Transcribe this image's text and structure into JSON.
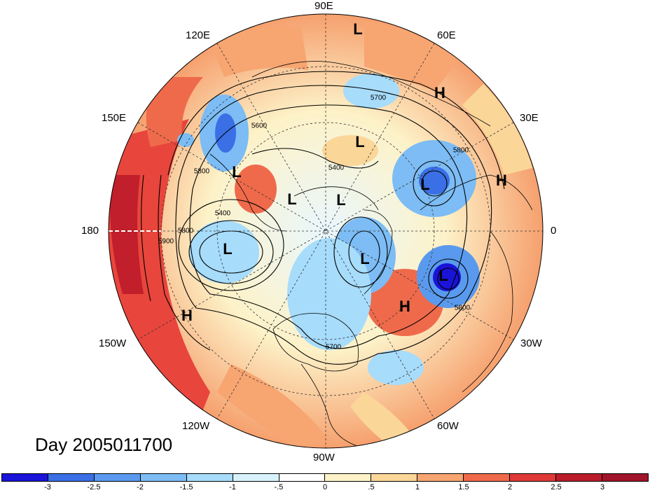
{
  "map": {
    "projection": "north-polar-stereographic",
    "field": "500hPa geopotential height anomaly (shaded) with height contours",
    "lon_labels": [
      "90E",
      "60E",
      "30E",
      "0",
      "30W",
      "60W",
      "90W",
      "120W",
      "150W",
      "180",
      "150E",
      "120E"
    ],
    "contour_labels": [
      "5700",
      "5600",
      "5400",
      "5800",
      "5800",
      "5400",
      "5800",
      "5900",
      "5800",
      "5700"
    ],
    "pressure_centers": [
      "L",
      "H",
      "L",
      "L",
      "H",
      "L",
      "L",
      "L",
      "L",
      "L",
      "L",
      "L",
      "H",
      "H"
    ],
    "colors": {
      "ocean_frame": "#ffffff",
      "grid": "#333333",
      "coast": "#000000"
    }
  },
  "caption": {
    "day_label": "Day 2005011700"
  },
  "colorbar": {
    "tick_labels": [
      "-3",
      "-2.5",
      "-2",
      "-1.5",
      "-1",
      "-.5",
      "0",
      ".5",
      "1",
      "1.5",
      "2",
      "2.5",
      "3"
    ],
    "colors": [
      "#1a13d8",
      "#3a6fe6",
      "#5a9aee",
      "#7dbcf4",
      "#a7dcfb",
      "#d8f2fd",
      "#ffffff",
      "#fdf2c8",
      "#fbd699",
      "#f7a571",
      "#ef6a4b",
      "#df3a37",
      "#bb1c2a",
      "#a1142a"
    ]
  }
}
